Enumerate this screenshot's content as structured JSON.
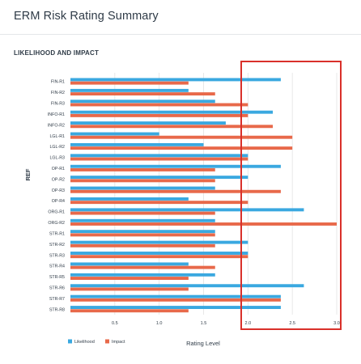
{
  "page": {
    "title": "ERM Risk Rating Summary"
  },
  "section": {
    "title": "LIKELIHOOD AND IMPACT"
  },
  "colors": {
    "likelihood": "#3aa8e0",
    "impact": "#e8694a",
    "highlight": "#d9302a",
    "grid": "#e3e3e3"
  },
  "chart_data": {
    "type": "bar",
    "orientation": "horizontal",
    "categories": [
      "FIN-R1",
      "FIN-R2",
      "FIN-R3",
      "INFO-R1",
      "INFO-R2",
      "LGL-R1",
      "LGL-R2",
      "LGL-R3",
      "OP-R1",
      "OP-R2",
      "OP-R3",
      "OP-R4",
      "ORG-R1",
      "ORG-R2",
      "STR-R1",
      "STR-R2",
      "STR-R3",
      "STR-R4",
      "STR-R5",
      "STR-R6",
      "STR-R7",
      "STR-R8"
    ],
    "series": [
      {
        "name": "Likelihood",
        "values": [
          2.37,
          1.33,
          1.63,
          2.28,
          1.75,
          1.0,
          1.5,
          2.0,
          2.37,
          2.0,
          1.63,
          1.33,
          2.63,
          1.63,
          1.63,
          2.0,
          2.0,
          1.33,
          1.63,
          2.63,
          2.37,
          2.37
        ]
      },
      {
        "name": "Impact",
        "values": [
          1.33,
          1.63,
          2.0,
          2.0,
          2.28,
          2.5,
          2.5,
          2.0,
          1.63,
          1.63,
          2.37,
          2.0,
          1.63,
          3.0,
          1.63,
          1.63,
          2.0,
          1.63,
          1.33,
          1.33,
          2.37,
          1.33
        ]
      }
    ],
    "xlabel": "Rating Level",
    "ylabel": "REF",
    "xlim": [
      0,
      3.0
    ],
    "xticks": [
      "0.5",
      "1.0",
      "1.5",
      "2.0",
      "2.5",
      "3.0"
    ],
    "grid": "vertical",
    "legend": "bottom-left"
  }
}
